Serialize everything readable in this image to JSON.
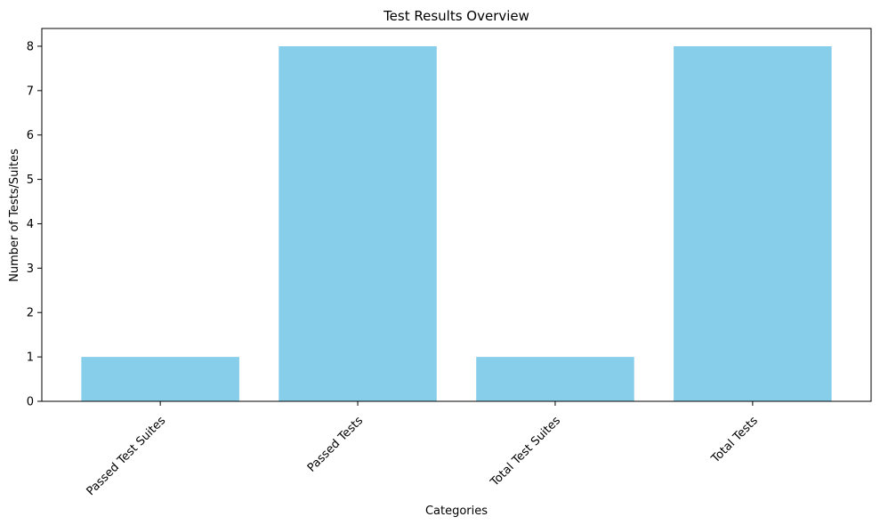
{
  "chart_data": {
    "type": "bar",
    "title": "Test Results Overview",
    "xlabel": "Categories",
    "ylabel": "Number of Tests/Suites",
    "categories": [
      "Passed Test Suites",
      "Passed Tests",
      "Total Test Suites",
      "Total Tests"
    ],
    "values": [
      1,
      8,
      1,
      8
    ],
    "ylim": [
      0,
      8.4
    ],
    "yticks": [
      0,
      1,
      2,
      3,
      4,
      5,
      6,
      7,
      8
    ],
    "grid": false,
    "bar_color": "#87CEEB"
  }
}
